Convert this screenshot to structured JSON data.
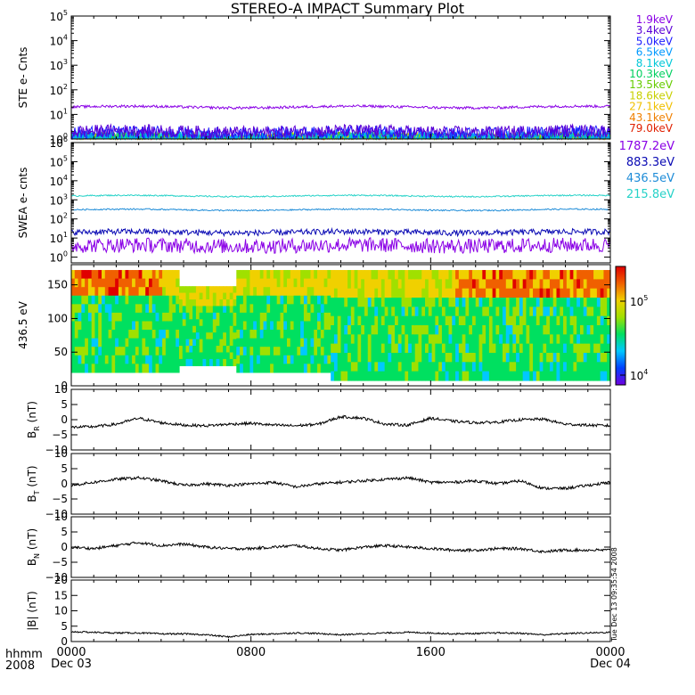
{
  "title": "STEREO-A IMPACT Summary Plot",
  "timestamp": "Tue Dec 13 09:35:54 2008",
  "chart_data": [
    {
      "type": "line",
      "id": "ste",
      "ylabel": "STE e- Cnts",
      "scale": "log",
      "ylim": [
        1,
        100000
      ],
      "ytick_exponents": [
        0,
        1,
        2,
        3,
        4,
        5
      ],
      "legend_placement": "right",
      "series": [
        {
          "name": "1.9keV",
          "color": "#8a00e6",
          "level": 20
        },
        {
          "name": "3.4keV",
          "color": "#5a00d6",
          "level": 2
        },
        {
          "name": "5.0keV",
          "color": "#1a1aff",
          "level": 1.8
        },
        {
          "name": "6.5keV",
          "color": "#0099ff",
          "level": 1.3
        },
        {
          "name": "8.1keV",
          "color": "#00c8d8",
          "level": 1.1
        },
        {
          "name": "10.3keV",
          "color": "#00d060",
          "level": 1
        },
        {
          "name": "13.5keV",
          "color": "#66cc00",
          "level": 1
        },
        {
          "name": "18.6keV",
          "color": "#c8d000",
          "level": 1
        },
        {
          "name": "27.1keV",
          "color": "#f0c000",
          "level": 1
        },
        {
          "name": "43.1keV",
          "color": "#f08000",
          "level": 1
        },
        {
          "name": "79.0keV",
          "color": "#e02000",
          "level": 1
        }
      ]
    },
    {
      "type": "line",
      "id": "swea",
      "ylabel": "SWEA e- cnts",
      "scale": "log",
      "ylim": [
        0.5,
        1000000
      ],
      "ytick_exponents": [
        0,
        1,
        2,
        3,
        4,
        5,
        6
      ],
      "legend_placement": "right",
      "series": [
        {
          "name": "1787.2eV",
          "color": "#8a00e6",
          "level": 4
        },
        {
          "name": "883.3eV",
          "color": "#0a0ab4",
          "level": 20
        },
        {
          "name": "436.5eV",
          "color": "#1e8cd8",
          "level": 300
        },
        {
          "name": "215.8eV",
          "color": "#26d2c8",
          "level": 1600
        }
      ]
    },
    {
      "type": "heatmap",
      "id": "pad",
      "ylabel": "436.5 eV",
      "ylim": [
        0,
        180
      ],
      "yticks": [
        0,
        50,
        100,
        150
      ],
      "colorbar": {
        "ticks": [
          "10^4",
          "10^5"
        ],
        "colors": [
          "#7000e0",
          "#0040ff",
          "#00c8ff",
          "#00e060",
          "#a0e000",
          "#f0d000",
          "#f06000",
          "#e00000"
        ]
      },
      "note": "pitch-angle distribution, values ~10^4 to ~3x10^5"
    },
    {
      "type": "line",
      "id": "br",
      "ylabel_main": "B",
      "ylabel_sub": "R",
      "ylabel_unit": " (nT)",
      "ylim": [
        -10,
        10
      ],
      "yticks": [
        -10,
        -5,
        0,
        5,
        10
      ],
      "ytick_labels": [
        "−10",
        "−5",
        "0",
        "5",
        "10"
      ],
      "x": [
        0,
        1,
        2,
        3,
        4,
        5,
        6,
        7,
        8,
        9,
        10,
        11,
        12,
        13,
        14,
        15,
        16,
        17,
        18,
        19,
        20,
        21,
        22,
        23,
        24
      ],
      "values": [
        -2.5,
        -2.3,
        -1.5,
        0.5,
        -1.0,
        -1.8,
        -2.0,
        -1.5,
        -1.2,
        -1.8,
        -2.0,
        -1.5,
        1.0,
        0.5,
        -1.5,
        -1.8,
        0.5,
        -0.5,
        -1.0,
        -0.8,
        0.0,
        0.2,
        -1.5,
        -1.8,
        -2.0
      ]
    },
    {
      "type": "line",
      "id": "bt",
      "ylabel_main": "B",
      "ylabel_sub": "T",
      "ylabel_unit": " (nT)",
      "ylim": [
        -10,
        10
      ],
      "yticks": [
        -10,
        -5,
        0,
        5,
        10
      ],
      "ytick_labels": [
        "−10",
        "−5",
        "0",
        "5",
        "10"
      ],
      "x": [
        0,
        1,
        2,
        3,
        4,
        5,
        6,
        7,
        8,
        9,
        10,
        11,
        12,
        13,
        14,
        15,
        16,
        17,
        18,
        19,
        20,
        21,
        22,
        23,
        24
      ],
      "values": [
        -0.5,
        0.5,
        1.5,
        2.0,
        1.0,
        -0.5,
        0.0,
        -0.5,
        0.0,
        0.5,
        -1.0,
        0.0,
        0.5,
        1.0,
        1.5,
        2.0,
        0.5,
        0.5,
        1.0,
        0.0,
        1.0,
        -1.5,
        -1.5,
        -0.5,
        0.5
      ]
    },
    {
      "type": "line",
      "id": "bn",
      "ylabel_main": "B",
      "ylabel_sub": "N",
      "ylabel_unit": " (nT)",
      "ylim": [
        -10,
        10
      ],
      "yticks": [
        -10,
        -5,
        0,
        5,
        10
      ],
      "ytick_labels": [
        "−10",
        "−5",
        "0",
        "5",
        "10"
      ],
      "x": [
        0,
        1,
        2,
        3,
        4,
        5,
        6,
        7,
        8,
        9,
        10,
        11,
        12,
        13,
        14,
        15,
        16,
        17,
        18,
        19,
        20,
        21,
        22,
        23,
        24
      ],
      "values": [
        0.0,
        -0.5,
        0.5,
        1.5,
        0.5,
        1.0,
        0.0,
        -0.5,
        -0.5,
        0.0,
        0.5,
        -0.5,
        -1.0,
        0.0,
        0.5,
        0.0,
        -0.5,
        -1.0,
        -1.0,
        -0.5,
        -0.5,
        -1.5,
        -1.0,
        -1.0,
        -1.0
      ]
    },
    {
      "type": "line",
      "id": "bmag",
      "ylabel_main": "|B|",
      "ylabel_sub": "",
      "ylabel_unit": " (nT)",
      "ylim": [
        0,
        20
      ],
      "yticks": [
        0,
        5,
        10,
        15,
        20
      ],
      "ytick_labels": [
        "0",
        "5",
        "10",
        "15",
        "20"
      ],
      "x": [
        0,
        1,
        2,
        3,
        4,
        5,
        6,
        7,
        8,
        9,
        10,
        11,
        12,
        13,
        14,
        15,
        16,
        17,
        18,
        19,
        20,
        21,
        22,
        23,
        24
      ],
      "values": [
        3.2,
        3.0,
        2.8,
        2.8,
        2.5,
        2.5,
        2.2,
        1.5,
        2.3,
        2.5,
        2.8,
        2.6,
        2.2,
        2.5,
        2.8,
        3.0,
        2.8,
        2.5,
        2.6,
        2.8,
        2.7,
        2.2,
        2.6,
        2.8,
        3.0
      ]
    }
  ],
  "x_axis": {
    "label_line1": "hhmm",
    "label_line2": "2008",
    "xlim": [
      0,
      24
    ],
    "major_ticks": [
      {
        "x": 0,
        "time": "0000",
        "date": "Dec 03"
      },
      {
        "x": 8,
        "time": "0800",
        "date": ""
      },
      {
        "x": 16,
        "time": "1600",
        "date": ""
      },
      {
        "x": 24,
        "time": "0000",
        "date": "Dec 04"
      }
    ]
  }
}
